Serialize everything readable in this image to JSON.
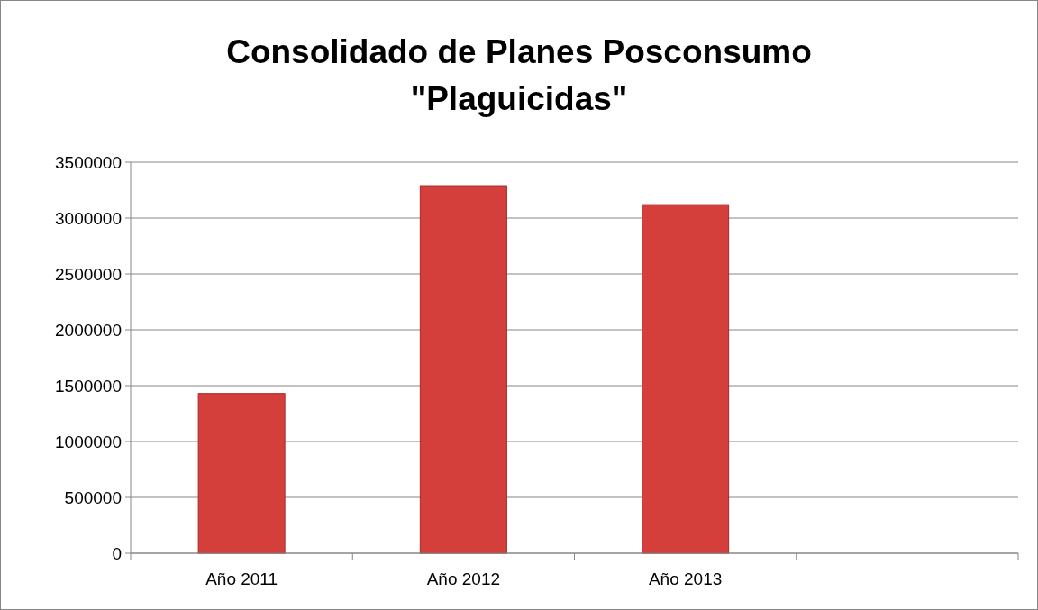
{
  "chart_data": {
    "type": "bar",
    "title": "Consolidado de Planes Posconsumo \"Plaguicidas\"",
    "categories": [
      "Año 2011",
      "Año 2012",
      "Año 2013",
      null
    ],
    "values": [
      1430000,
      3290000,
      3120000,
      null
    ],
    "color": "#d43f3c",
    "ylim": [
      0,
      3500000
    ],
    "yticks": [
      0,
      500000,
      1000000,
      1500000,
      2000000,
      2500000,
      3000000,
      3500000
    ],
    "grid": "y"
  }
}
